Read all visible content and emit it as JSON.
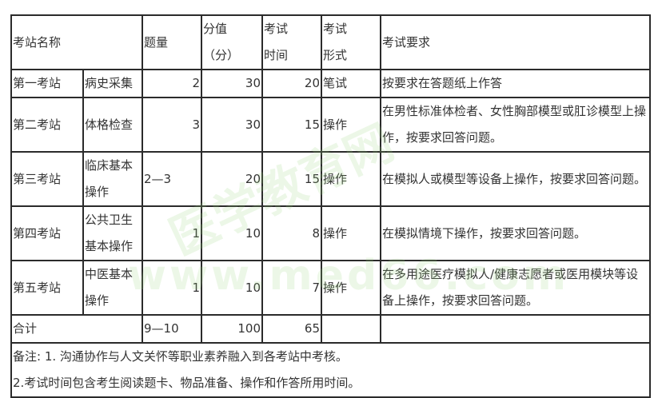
{
  "header": {
    "station_name": "考站名称",
    "question_count": "题量",
    "score_line1": "分值",
    "score_line2": "（分）",
    "time_line1": "考试",
    "time_line2": "时间",
    "format_line1": "考试",
    "format_line2": "形式",
    "requirements": "考试要求"
  },
  "rows": [
    {
      "station": "第一考站",
      "subject": "病史采集",
      "count": "2",
      "score": "30",
      "time": "20",
      "format": "笔试",
      "requirement": "按要求在答题纸上作答"
    },
    {
      "station": "第二考站",
      "subject": "体格检查",
      "count": "3",
      "score": "30",
      "time": "15",
      "format": "操作",
      "requirement": "在男性标准体检者、女性胸部模型或肛诊模型上操作，按要求回答问题。"
    },
    {
      "station": "第三考站",
      "subject": "临床基本操作",
      "count": "2—3",
      "score": "20",
      "time": "15",
      "format": "操作",
      "requirement": "在模拟人或模型等设备上操作，按要求回答问题。"
    },
    {
      "station": "第四考站",
      "subject": "公共卫生基本操作",
      "count": "1",
      "score": "10",
      "time": "8",
      "format": "操作",
      "requirement": "在模拟情境下操作，按要求回答问题。"
    },
    {
      "station": "第五考站",
      "subject": "中医基本操作",
      "count": "1",
      "score": "10",
      "time": "7",
      "format": "操作",
      "requirement": "在多用途医疗模拟人/健康志愿者或医用模块等设备上操作，按要求回答问题。"
    }
  ],
  "total": {
    "label": "合计",
    "count": "9—10",
    "score": "100",
    "time": "65"
  },
  "notes": {
    "line1": "备注: 1. 沟通协作与人文关怀等职业素养融入到各考站中考核。",
    "line2": "2.考试时间包含考生阅读题卡、物品准备、操作和作答所用时间。"
  },
  "watermark": {
    "text1": "医学教育网",
    "text2": "www.med66.com",
    "color": "#96d278"
  }
}
